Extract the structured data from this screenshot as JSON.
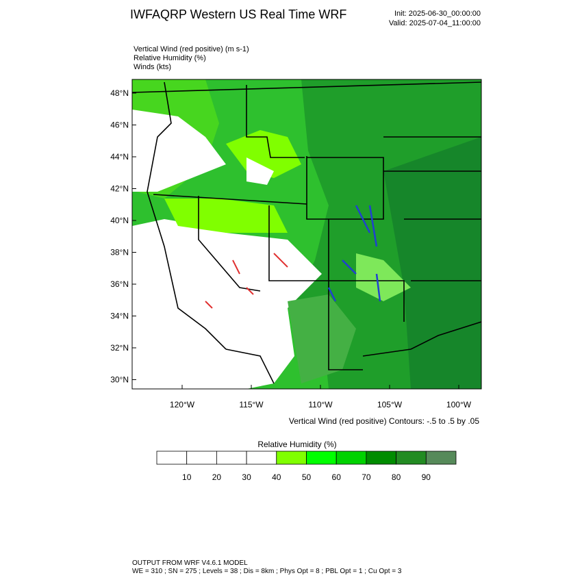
{
  "header": {
    "title": "IWFAQRP Western US Real Time WRF",
    "init": "Init: 2025-06-30_00:00:00",
    "valid": "Valid: 2025-07-04_11:00:00"
  },
  "fields": [
    "Vertical Wind (red positive)   (m s-1)",
    "Relative Humidity   (%)",
    "Winds   (kts)"
  ],
  "map": {
    "lat_labels": [
      "48°N",
      "46°N",
      "44°N",
      "42°N",
      "40°N",
      "38°N",
      "36°N",
      "34°N",
      "32°N",
      "30°N"
    ],
    "lon_labels": [
      "120°W",
      "115°W",
      "110°W",
      "105°W",
      "100°W"
    ],
    "contour_note": "Vertical Wind (red positive) Contours: -.5 to .5 by .05"
  },
  "colorbar": {
    "title": "Relative Humidity   (%)",
    "labels": [
      10,
      20,
      30,
      40,
      50,
      60,
      70,
      80,
      90
    ],
    "colors": [
      "#ffffff",
      "#ffffff",
      "#ffffff",
      "#ffffff",
      "#80ff00",
      "#00ff00",
      "#00d200",
      "#008c00",
      "#228b22",
      "#568a5a"
    ]
  },
  "footer": {
    "line1": "OUTPUT FROM WRF V4.6.1 MODEL",
    "line2": "WE = 310 ; SN = 275 ; Levels = 38 ; Dis = 8km ; Phys Opt = 8 ; PBL Opt = 1 ; Cu Opt = 3"
  }
}
